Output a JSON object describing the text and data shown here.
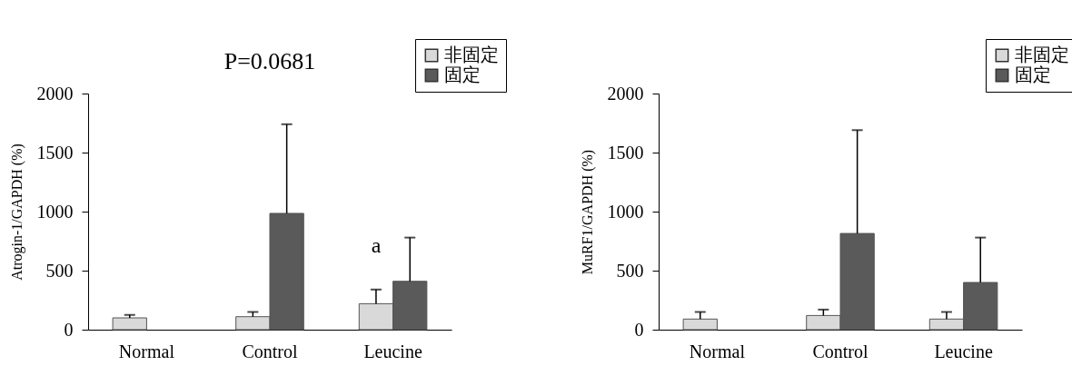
{
  "chart_data": [
    {
      "type": "bar",
      "ylabel": "Atrogin-1/GAPDH (%)",
      "categories": [
        "Normal",
        "Control",
        "Leucine"
      ],
      "ylim": [
        0,
        2000
      ],
      "yticks": [
        0,
        500,
        1000,
        1500,
        2000
      ],
      "grid": false,
      "legend": "top right",
      "series": [
        {
          "name": "非固定",
          "color": "#d9d9d9",
          "values": [
            100,
            110,
            220
          ],
          "errors": [
            [
              100,
              125
            ],
            [
              110,
              150
            ],
            [
              220,
              340
            ]
          ]
        },
        {
          "name": "固定",
          "color": "#5a5a5a",
          "values": [
            null,
            985,
            410
          ],
          "errors": [
            null,
            [
              985,
              1740
            ],
            [
              410,
              780
            ]
          ]
        }
      ],
      "annotations": [
        "P=0.0681",
        "a"
      ]
    },
    {
      "type": "bar",
      "ylabel": "MuRF1/GAPDH (%)",
      "categories": [
        "Normal",
        "Control",
        "Leucine"
      ],
      "ylim": [
        0,
        2000
      ],
      "yticks": [
        0,
        500,
        1000,
        1500,
        2000
      ],
      "grid": false,
      "legend": "top right",
      "series": [
        {
          "name": "非固定",
          "color": "#d9d9d9",
          "values": [
            90,
            120,
            90
          ],
          "errors": [
            [
              90,
              150
            ],
            [
              120,
              170
            ],
            [
              90,
              150
            ]
          ]
        },
        {
          "name": "固定",
          "color": "#5a5a5a",
          "values": [
            null,
            815,
            400
          ],
          "errors": [
            null,
            [
              815,
              1690
            ],
            [
              400,
              780
            ]
          ]
        }
      ]
    }
  ]
}
